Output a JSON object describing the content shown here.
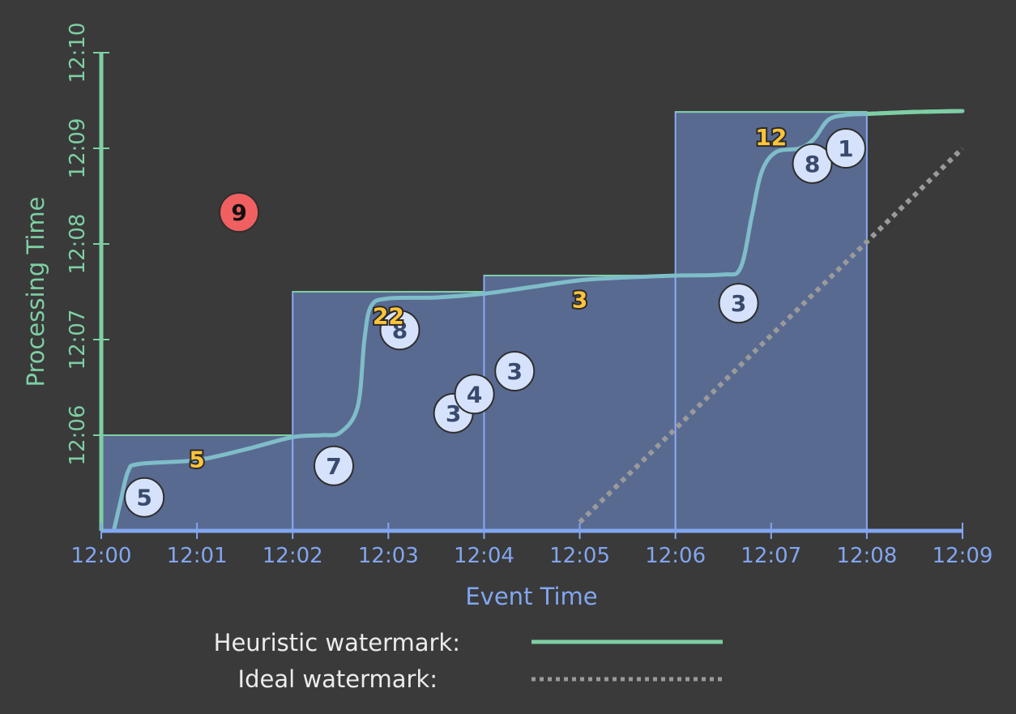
{
  "chart_data": {
    "type": "scatter",
    "xlabel": "Event Time",
    "ylabel": "Processing Time",
    "x_ticks": [
      "12:00",
      "12:01",
      "12:02",
      "12:03",
      "12:04",
      "12:05",
      "12:06",
      "12:07",
      "12:08",
      "12:09"
    ],
    "y_ticks": [
      "12:06",
      "12:07",
      "12:08",
      "12:09",
      "12:10"
    ],
    "x_range_minutes": [
      0,
      9
    ],
    "y_range_minutes": [
      5,
      10
    ],
    "windows": [
      {
        "x_start": 0,
        "x_end": 2,
        "trigger_y": 6.0
      },
      {
        "x_start": 2,
        "x_end": 4,
        "trigger_y": 7.5
      },
      {
        "x_start": 4,
        "x_end": 6,
        "trigger_y": 7.67
      },
      {
        "x_start": 6,
        "x_end": 8,
        "trigger_y": 9.38
      }
    ],
    "inputs": [
      {
        "x": 0.45,
        "y": 5.35,
        "label": "5"
      },
      {
        "x": 2.43,
        "y": 5.68,
        "label": "7"
      },
      {
        "x": 3.12,
        "y": 7.1,
        "label": "8"
      },
      {
        "x": 3.68,
        "y": 6.23,
        "label": "3"
      },
      {
        "x": 3.9,
        "y": 6.43,
        "label": "4"
      },
      {
        "x": 4.32,
        "y": 6.67,
        "label": "3"
      },
      {
        "x": 6.66,
        "y": 7.38,
        "label": "3"
      },
      {
        "x": 7.43,
        "y": 8.84,
        "label": "8"
      },
      {
        "x": 7.78,
        "y": 9.0,
        "label": "1"
      }
    ],
    "late_inputs": [
      {
        "x": 1.44,
        "y": 8.33,
        "label": "9"
      }
    ],
    "results": [
      {
        "x": 1.0,
        "y": 5.75,
        "label": "5"
      },
      {
        "x": 3.0,
        "y": 7.25,
        "label": "22"
      },
      {
        "x": 5.0,
        "y": 7.42,
        "label": "3"
      },
      {
        "x": 7.0,
        "y": 9.12,
        "label": "12"
      }
    ],
    "heuristic_watermark": [
      [
        0.13,
        5.0
      ],
      [
        0.2,
        5.3
      ],
      [
        0.28,
        5.62
      ],
      [
        0.4,
        5.7
      ],
      [
        1.0,
        5.74
      ],
      [
        1.5,
        5.85
      ],
      [
        2.0,
        5.98
      ],
      [
        2.3,
        6.0
      ],
      [
        2.5,
        6.03
      ],
      [
        2.68,
        6.3
      ],
      [
        2.75,
        7.0
      ],
      [
        2.82,
        7.35
      ],
      [
        3.0,
        7.43
      ],
      [
        3.5,
        7.44
      ],
      [
        4.0,
        7.48
      ],
      [
        4.5,
        7.55
      ],
      [
        5.0,
        7.62
      ],
      [
        5.5,
        7.65
      ],
      [
        6.0,
        7.67
      ],
      [
        6.5,
        7.68
      ],
      [
        6.68,
        7.75
      ],
      [
        6.8,
        8.3
      ],
      [
        6.9,
        8.75
      ],
      [
        7.05,
        8.96
      ],
      [
        7.3,
        9.0
      ],
      [
        7.45,
        9.1
      ],
      [
        7.6,
        9.3
      ],
      [
        7.8,
        9.35
      ],
      [
        8.0,
        9.36
      ],
      [
        8.5,
        9.38
      ],
      [
        9.0,
        9.39
      ]
    ],
    "ideal_watermark": [
      [
        5.0,
        5.09
      ],
      [
        9.0,
        9.0
      ]
    ],
    "legend": [
      {
        "label": "Heuristic watermark:",
        "style": "solid",
        "color": "#7ecfa4"
      },
      {
        "label": "Ideal watermark:",
        "style": "dotted",
        "color": "#9a9a9a"
      }
    ],
    "colors": {
      "background": "#3a3a3a",
      "x_axis": "#82a6f0",
      "y_axis": "#7ecfa4",
      "window_fill": "#596a91",
      "window_border": "#8aaaf0",
      "window_trigger": "#7ecfa4",
      "input_fill": "#d6e2fb",
      "late_fill": "#f06060",
      "result": "#ffc43a",
      "heuristic": "#7fbdc9",
      "ideal": "#9a9a9a"
    }
  }
}
